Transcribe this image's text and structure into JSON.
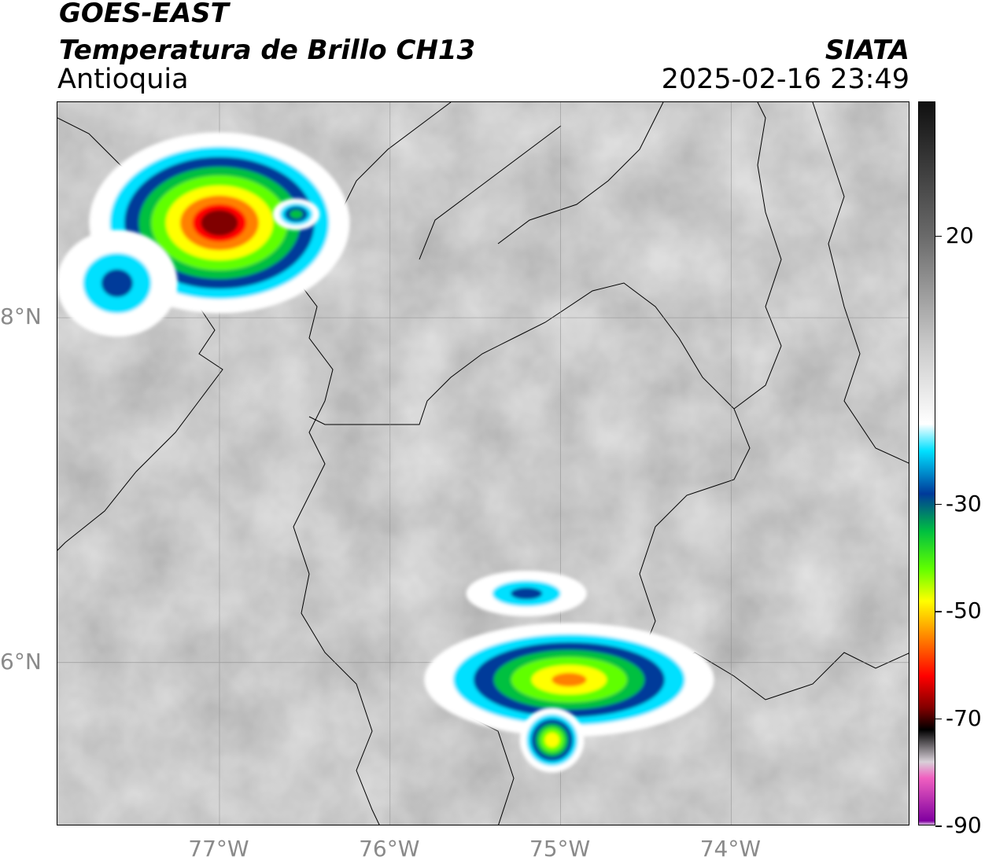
{
  "header": {
    "title_line1": "GOES-EAST",
    "title_line2": "Temperatura de Brillo CH13",
    "region": "Antioquia",
    "org": "SIATA",
    "datetime": "2025-02-16 23:49"
  },
  "map": {
    "lon_range": [
      -77.95,
      -72.95
    ],
    "lat_range": [
      5.05,
      9.25
    ],
    "lat_ticks": [
      {
        "value": 8,
        "label": "8°N"
      },
      {
        "value": 6,
        "label": "6°N"
      }
    ],
    "lon_ticks": [
      {
        "value": -77,
        "label": "77°W"
      },
      {
        "value": -76,
        "label": "76°W"
      },
      {
        "value": -75,
        "label": "75°W"
      },
      {
        "value": -74,
        "label": "74°W"
      }
    ],
    "cloud_cells": [
      {
        "name": "storm-uraba",
        "lon": -77.0,
        "lat": 8.55,
        "min_temp": -75,
        "extent_deg": [
          0.8,
          0.55
        ]
      },
      {
        "name": "storm-east-uraba",
        "lon": -76.55,
        "lat": 8.6,
        "min_temp": -45,
        "extent_deg": [
          0.15,
          0.1
        ]
      },
      {
        "name": "storm-northwest",
        "lon": -77.6,
        "lat": 8.2,
        "min_temp": -35,
        "extent_deg": [
          0.4,
          0.35
        ]
      },
      {
        "name": "storm-medellin-north",
        "lon": -75.2,
        "lat": 6.4,
        "min_temp": -35,
        "extent_deg": [
          0.4,
          0.15
        ]
      },
      {
        "name": "storm-medellin",
        "lon": -74.95,
        "lat": 5.9,
        "min_temp": -62,
        "extent_deg": [
          0.9,
          0.35
        ]
      },
      {
        "name": "storm-medellin-south",
        "lon": -75.05,
        "lat": 5.55,
        "min_temp": -60,
        "extent_deg": [
          0.2,
          0.2
        ]
      }
    ]
  },
  "colorbar": {
    "label_ticks": [
      {
        "value": 20,
        "label": "20"
      },
      {
        "value": -30,
        "label": "-30"
      },
      {
        "value": -50,
        "label": "-50"
      },
      {
        "value": -70,
        "label": "-70"
      },
      {
        "value": -90,
        "label": "-90"
      }
    ],
    "stops": [
      {
        "value": 45,
        "color": "#101010"
      },
      {
        "value": 20,
        "color": "#6a6a6a"
      },
      {
        "value": 0,
        "color": "#c8c8c8"
      },
      {
        "value": -15,
        "color": "#ffffff"
      },
      {
        "value": -20,
        "color": "#00e0ff"
      },
      {
        "value": -28,
        "color": "#003a9a"
      },
      {
        "value": -35,
        "color": "#00c040"
      },
      {
        "value": -42,
        "color": "#60ff00"
      },
      {
        "value": -48,
        "color": "#ffff00"
      },
      {
        "value": -55,
        "color": "#ff8000"
      },
      {
        "value": -62,
        "color": "#ff0000"
      },
      {
        "value": -68,
        "color": "#800000"
      },
      {
        "value": -72,
        "color": "#000000"
      },
      {
        "value": -78,
        "color": "#d8d0d8"
      },
      {
        "value": -81,
        "color": "#f060c0"
      },
      {
        "value": -89,
        "color": "#8000a0"
      },
      {
        "value": -90,
        "color": "#ffffff"
      }
    ]
  }
}
